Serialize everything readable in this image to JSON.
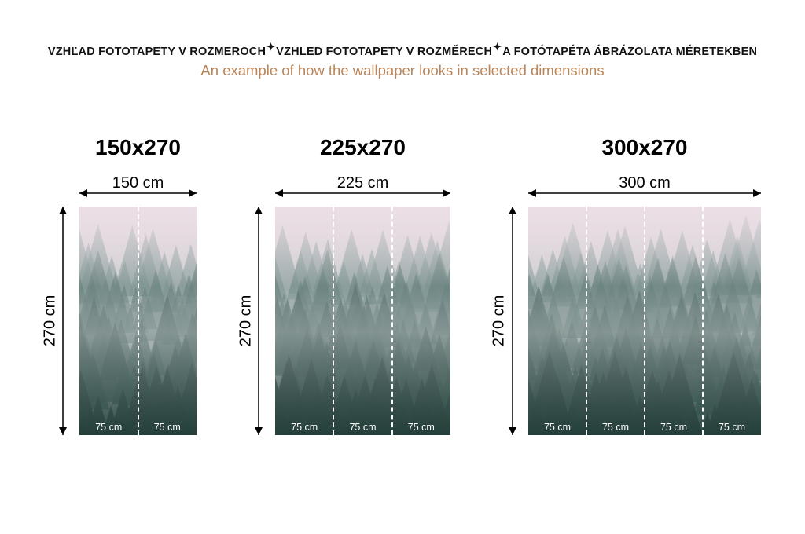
{
  "header": {
    "title_parts": [
      "VZHĽAD FOTOTAPETY V ROZMEROCH",
      "VZHLED FOTOTAPETY V ROZMĚRECH",
      "A FOTÓTAPÉTA ÁBRÁZOLATA MÉRETEKBEN"
    ],
    "separator_icon": "sparkle-icon",
    "subtitle": "An example of how the wallpaper looks in selected dimensions"
  },
  "colors": {
    "subtitle": "#b98559",
    "fog": "#e9dde4",
    "forest": "#2d4a45"
  },
  "panels": [
    {
      "title": "150x270",
      "width_label": "150 cm",
      "height_label": "270 cm",
      "segments": [
        "75 cm",
        "75 cm"
      ]
    },
    {
      "title": "225x270",
      "width_label": "225 cm",
      "height_label": "270 cm",
      "segments": [
        "75 cm",
        "75 cm",
        "75 cm"
      ]
    },
    {
      "title": "300x270",
      "width_label": "300 cm",
      "height_label": "270 cm",
      "segments": [
        "75 cm",
        "75 cm",
        "75 cm",
        "75 cm"
      ]
    }
  ]
}
